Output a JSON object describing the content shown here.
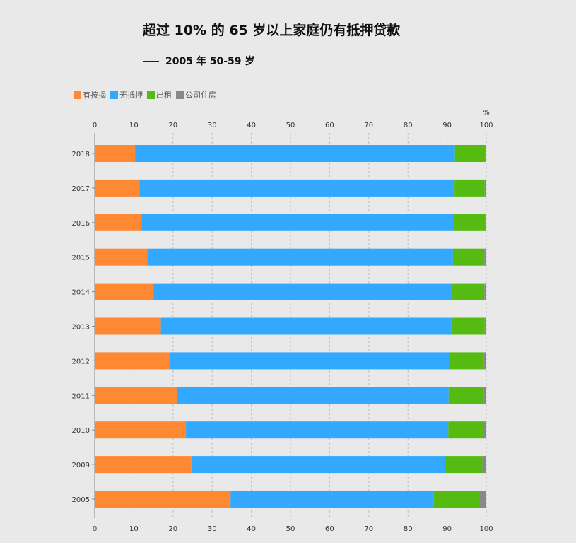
{
  "chart_data": {
    "type": "bar",
    "orientation": "horizontal",
    "stacked": true,
    "title": "超过 10% 的 65 岁以上家庭仍有抵押贷款",
    "subtitle": "2005 年 50-59 岁",
    "unit": "%",
    "xlim": [
      0,
      100
    ],
    "xticks": [
      "0",
      "10",
      "20",
      "30",
      "40",
      "50",
      "60",
      "70",
      "80",
      "90",
      "100"
    ],
    "grid": "vertical-dashed",
    "legend_position": "top-left",
    "categories": [
      "2018",
      "2017",
      "2016",
      "2015",
      "2014",
      "2013",
      "2012",
      "2011",
      "2010",
      "2009",
      "2005"
    ],
    "series": [
      {
        "name": "有按揭",
        "color": "#ff8833",
        "values": [
          10.3,
          11.4,
          12.0,
          13.4,
          15.0,
          16.9,
          19.2,
          21.0,
          23.3,
          24.7,
          34.7
        ]
      },
      {
        "name": "无抵押",
        "color": "#33a8ff",
        "values": [
          81.7,
          80.5,
          79.7,
          78.1,
          76.3,
          74.2,
          71.5,
          69.4,
          67.0,
          64.8,
          51.8
        ]
      },
      {
        "name": "出租",
        "color": "#55bb11",
        "values": [
          7.7,
          7.7,
          8.0,
          8.0,
          8.2,
          8.5,
          8.6,
          8.9,
          8.9,
          9.5,
          11.7
        ]
      },
      {
        "name": "公司住房",
        "color": "#888888",
        "values": [
          0.3,
          0.4,
          0.3,
          0.5,
          0.5,
          0.4,
          0.7,
          0.7,
          0.8,
          1.0,
          1.8
        ]
      }
    ]
  }
}
